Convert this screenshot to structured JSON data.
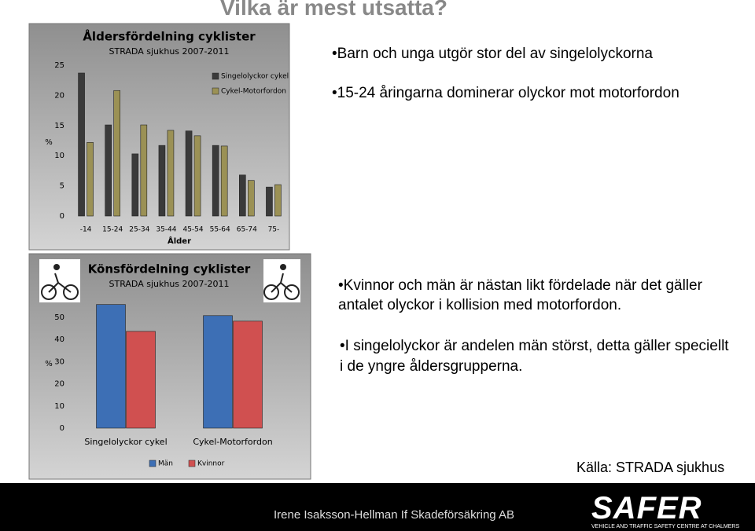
{
  "slide": {
    "title": "Vilka är mest utsatta?",
    "bullets_top": [
      "Barn och unga utgör stor del av singelolyckorna",
      "15-24 åringarna dominerar olyckor mot motorfordon"
    ],
    "bullets_bottom": [
      "Kvinnor och män är nästan likt fördelade när det gäller antalet olyckor i kollision  med motorfordon.",
      "I singelolyckor  är andelen män störst, detta gäller speciellt i de yngre åldersgrupperna."
    ],
    "source": "Källa: STRADA sjukhus",
    "footer": "Irene Isaksson-Hellman If Skadeförsäkring AB",
    "logo": {
      "name": "SAFER",
      "tagline": "VEHICLE AND TRAFFIC SAFETY CENTRE AT CHALMERS"
    }
  },
  "chart_data": [
    {
      "type": "bar",
      "title": "Åldersfördelning cyklister",
      "subtitle": "STRADA sjukhus 2007-2011",
      "categories": [
        "-14",
        "15-24",
        "25-34",
        "35-44",
        "45-54",
        "55-64",
        "65-74",
        "75-"
      ],
      "series": [
        {
          "name": "Singelolyckor cykel",
          "color": "#3a3a3a",
          "values": [
            23.7,
            15.1,
            10.3,
            11.7,
            14.1,
            11.7,
            6.8,
            4.8
          ]
        },
        {
          "name": "Cykel-Motorfordon",
          "color": "#9b9155",
          "values": [
            12.2,
            20.8,
            15.1,
            14.2,
            13.3,
            11.6,
            5.9,
            5.2
          ]
        }
      ],
      "ylim": [
        0,
        25
      ],
      "yticks": [
        0,
        5,
        10,
        15,
        20,
        25
      ],
      "ylabel": "%",
      "xlabel": "Ålder",
      "legend": "upper right"
    },
    {
      "type": "bar",
      "title": "Könsfördelning cyklister",
      "subtitle": "STRADA sjukhus 2007-2011",
      "categories": [
        "Singelolyckor cykel",
        "Cykel-Motorfordon"
      ],
      "series": [
        {
          "name": "Män",
          "color": "#3d6fb5",
          "values": [
            55.7,
            50.7
          ]
        },
        {
          "name": "Kvinnor",
          "color": "#d05050",
          "values": [
            43.6,
            48.2
          ]
        }
      ],
      "ylim": [
        0,
        57
      ],
      "yticks": [
        0,
        10,
        20,
        30,
        40,
        50
      ],
      "ylabel": "%",
      "legend": "bottom"
    }
  ]
}
